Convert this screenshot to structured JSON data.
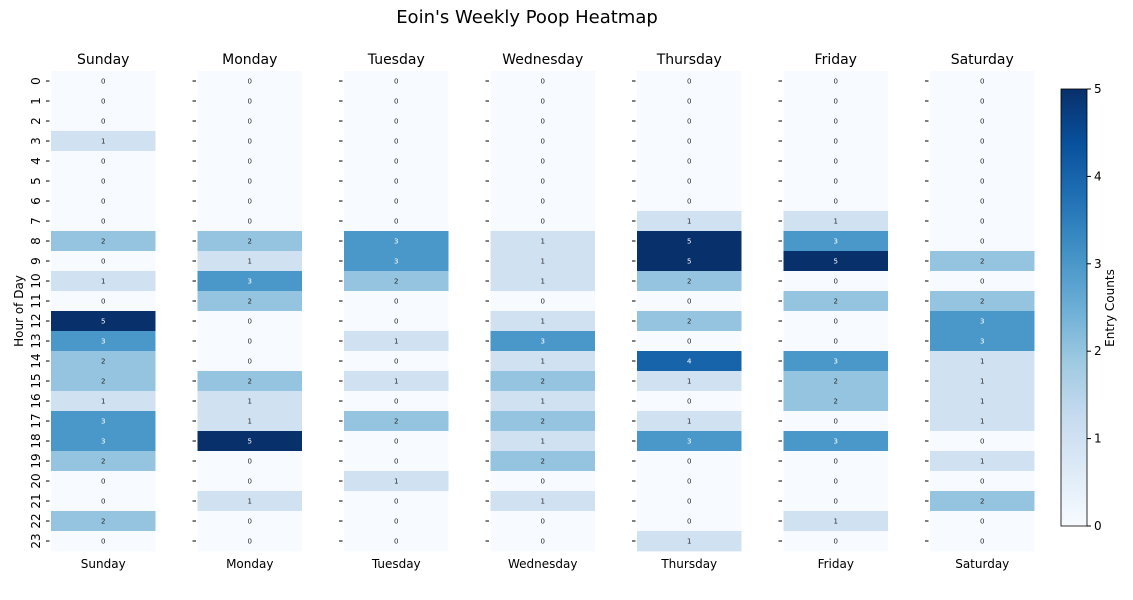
{
  "chart_data": {
    "type": "heatmap",
    "title": "Eoin's Weekly Poop Heatmap",
    "ylabel": "Hour of Day",
    "colorbar_label": "Entry Counts",
    "colorbar_ticks": [
      "0",
      "1",
      "2",
      "3",
      "4",
      "5"
    ],
    "vmin": 0,
    "vmax": 5,
    "colormap": "Blues",
    "colormap_stops": [
      "#f7fbff",
      "#deebf7",
      "#c6dbef",
      "#9ecae1",
      "#6baed6",
      "#4292c6",
      "#2171b5",
      "#08519c",
      "#08306b"
    ],
    "hours": [
      "0",
      "1",
      "2",
      "3",
      "4",
      "5",
      "6",
      "7",
      "8",
      "9",
      "10",
      "11",
      "12",
      "13",
      "14",
      "15",
      "16",
      "17",
      "18",
      "19",
      "20",
      "21",
      "22",
      "23"
    ],
    "days": [
      {
        "name": "Sunday",
        "values": [
          0,
          0,
          0,
          1,
          0,
          0,
          0,
          0,
          2,
          0,
          1,
          0,
          5,
          3,
          2,
          2,
          1,
          3,
          3,
          2,
          0,
          0,
          2,
          0
        ]
      },
      {
        "name": "Monday",
        "values": [
          0,
          0,
          0,
          0,
          0,
          0,
          0,
          0,
          2,
          1,
          3,
          2,
          0,
          0,
          0,
          2,
          1,
          1,
          5,
          0,
          0,
          1,
          0,
          0
        ]
      },
      {
        "name": "Tuesday",
        "values": [
          0,
          0,
          0,
          0,
          0,
          0,
          0,
          0,
          3,
          3,
          2,
          0,
          0,
          1,
          0,
          1,
          0,
          2,
          0,
          0,
          1,
          0,
          0,
          0
        ]
      },
      {
        "name": "Wednesday",
        "values": [
          0,
          0,
          0,
          0,
          0,
          0,
          0,
          0,
          1,
          1,
          1,
          0,
          1,
          3,
          1,
          2,
          1,
          2,
          1,
          2,
          0,
          1,
          0,
          0
        ]
      },
      {
        "name": "Thursday",
        "values": [
          0,
          0,
          0,
          0,
          0,
          0,
          0,
          1,
          5,
          5,
          2,
          0,
          2,
          0,
          4,
          1,
          0,
          1,
          3,
          0,
          0,
          0,
          0,
          1
        ]
      },
      {
        "name": "Friday",
        "values": [
          0,
          0,
          0,
          0,
          0,
          0,
          0,
          1,
          3,
          5,
          0,
          2,
          0,
          0,
          3,
          2,
          2,
          0,
          3,
          0,
          0,
          0,
          1,
          0
        ]
      },
      {
        "name": "Saturday",
        "values": [
          0,
          0,
          0,
          0,
          0,
          0,
          0,
          0,
          0,
          2,
          0,
          2,
          3,
          3,
          1,
          1,
          1,
          1,
          0,
          1,
          0,
          2,
          0,
          0
        ]
      }
    ]
  }
}
